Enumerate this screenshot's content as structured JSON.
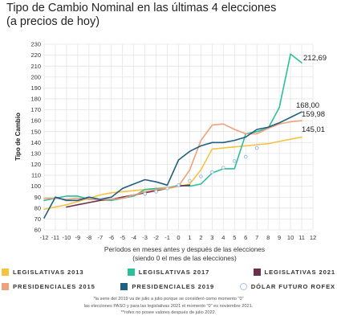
{
  "title_line1": "Tipo de Cambio Nominal en las últimas 4 elecciones",
  "title_line2": "(a precios de hoy)",
  "xlabel_line1": "Períodos en meses antes y después de las elecciones",
  "xlabel_line2": "(siendo 0 el mes de las elecciones)",
  "note_line1": "*la serie del 2019 va de julio a julio porque se consideró como momento \"0\"",
  "note_line2": "las elecciones PASO y para las legislativas 2021 el momento \"0\" es noviembre 2021.",
  "note_line3": "**rofex no posee valores después de julio 2022.",
  "end_labels": [
    "212,69",
    "168,00",
    "159,98",
    "145,01"
  ],
  "chart_data": {
    "type": "line",
    "ylabel": "Tipo de Cambio",
    "xlabel": "Períodos en meses antes y después de las elecciones (siendo 0 el mes de las elecciones)",
    "x": [
      -12,
      -11,
      -10,
      -9,
      -8,
      -7,
      -6,
      -5,
      -4,
      -3,
      -2,
      -1,
      0,
      1,
      2,
      3,
      4,
      5,
      6,
      7,
      8,
      9,
      10,
      11,
      12
    ],
    "xlim": [
      -12,
      12
    ],
    "ylim": [
      60,
      230
    ],
    "yticks": [
      60,
      70,
      80,
      90,
      100,
      110,
      120,
      130,
      140,
      150,
      160,
      170,
      180,
      190,
      200,
      210,
      220,
      230
    ],
    "grid": true,
    "legend_position": "bottom",
    "series": [
      {
        "name": "LEGISLATIVAS 2013",
        "color": "#f5c342",
        "style": "line",
        "x": [
          -12,
          -11,
          -10,
          -9,
          -8,
          -7,
          -6,
          -5,
          -4,
          -3,
          -2,
          -1,
          0,
          1,
          2,
          3,
          4,
          5,
          6,
          7,
          8,
          9,
          10,
          11
        ],
        "values": [
          79,
          81,
          83,
          86,
          89,
          92,
          94,
          95,
          96,
          97,
          98,
          99,
          100,
          102,
          115,
          134,
          135,
          136,
          137,
          138,
          139,
          141,
          143,
          145
        ]
      },
      {
        "name": "LEGISLATIVAS 2017",
        "color": "#2bbf9e",
        "style": "line",
        "x": [
          -12,
          -11,
          -10,
          -9,
          -8,
          -7,
          -6,
          -5,
          -4,
          -3,
          -2,
          -1,
          0,
          1,
          2,
          3,
          4,
          5,
          6,
          7,
          8,
          9,
          10,
          11
        ],
        "values": [
          87,
          89,
          91,
          91,
          88,
          88,
          87,
          89,
          91,
          97,
          98,
          98,
          101,
          100,
          102,
          112,
          116,
          116,
          148,
          150,
          153,
          172,
          221,
          213
        ]
      },
      {
        "name": "LEGISLATIVAS 2021",
        "color": "#6e2f4d",
        "style": "line",
        "x": [
          -10,
          -9,
          -8,
          -7,
          -6,
          -5,
          -4,
          -3,
          -2,
          -1,
          0,
          1
        ],
        "values": [
          81,
          83,
          85,
          87,
          88,
          90,
          92,
          94,
          96,
          98,
          100,
          101
        ]
      },
      {
        "name": "PRESIDENCIALES 2015",
        "color": "#f0a07a",
        "style": "line",
        "x": [
          -12,
          -11,
          -10,
          -9,
          -8,
          -7,
          -6,
          -5,
          -4,
          -3,
          -2,
          -1,
          0,
          1,
          2,
          3,
          4,
          5,
          6,
          7,
          8,
          9,
          10,
          11
        ],
        "values": [
          89,
          89,
          88,
          89,
          88,
          88,
          88,
          89,
          92,
          95,
          97,
          98,
          100,
          115,
          142,
          156,
          157,
          152,
          148,
          148,
          153,
          157,
          159,
          160
        ]
      },
      {
        "name": "PRESIDENCIALES 2019",
        "color": "#1f5f80",
        "style": "line",
        "x": [
          -12,
          -11,
          -10,
          -9,
          -8,
          -7,
          -6,
          -5,
          -4,
          -3,
          -2,
          -1,
          0,
          1,
          2,
          3,
          4,
          5,
          6,
          7,
          8,
          9,
          10,
          11
        ],
        "values": [
          71,
          90,
          87,
          87,
          90,
          88,
          90,
          98,
          102,
          106,
          104,
          101,
          124,
          132,
          137,
          140,
          140,
          142,
          145,
          152,
          154,
          158,
          163,
          168
        ]
      },
      {
        "name": "DÓLAR FUTURO ROFEX",
        "color": "#a9bfe0",
        "style": "markers",
        "x": [
          -3,
          -2,
          -1,
          0,
          1,
          2,
          3,
          4,
          5,
          6,
          7
        ],
        "values": [
          93,
          95,
          98,
          101,
          105,
          109,
          113,
          117,
          123,
          127,
          135
        ]
      }
    ]
  }
}
